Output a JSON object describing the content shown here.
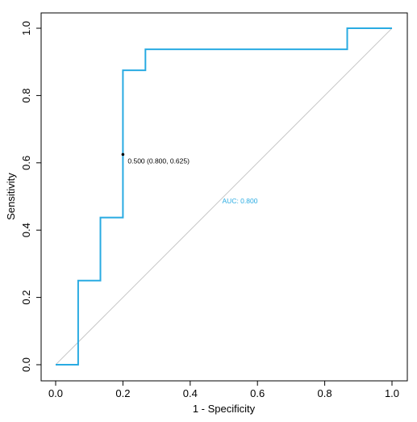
{
  "chart_data": {
    "type": "line",
    "xlabel": "1 - Specificity",
    "ylabel": "Sensitivity",
    "xlim": [
      0,
      1
    ],
    "ylim": [
      0,
      1
    ],
    "x_ticks": [
      "0.0",
      "0.2",
      "0.4",
      "0.6",
      "0.8",
      "1.0"
    ],
    "y_ticks": [
      "0.0",
      "0.2",
      "0.4",
      "0.6",
      "0.8",
      "1.0"
    ],
    "grid": false,
    "legend": "none",
    "reference_line": {
      "from": [
        0,
        0
      ],
      "to": [
        1,
        1
      ],
      "color": "#c8c8c8"
    },
    "series": [
      {
        "color": "#29abe2",
        "x": [
          0.0,
          0.067,
          0.067,
          0.133,
          0.133,
          0.2,
          0.2,
          0.267,
          0.267,
          0.867,
          0.867,
          1.0
        ],
        "y": [
          0.0,
          0.0,
          0.25,
          0.25,
          0.4375,
          0.4375,
          0.875,
          0.875,
          0.9375,
          0.9375,
          1.0,
          1.0
        ]
      }
    ],
    "threshold_point": {
      "x": 0.2,
      "y": 0.625,
      "label": "0.500 (0.800, 0.625)",
      "color": "#000000"
    },
    "auc_label": {
      "text": "AUC: 0.800",
      "x": 0.5,
      "y": 0.48,
      "color": "#29abe2"
    }
  }
}
